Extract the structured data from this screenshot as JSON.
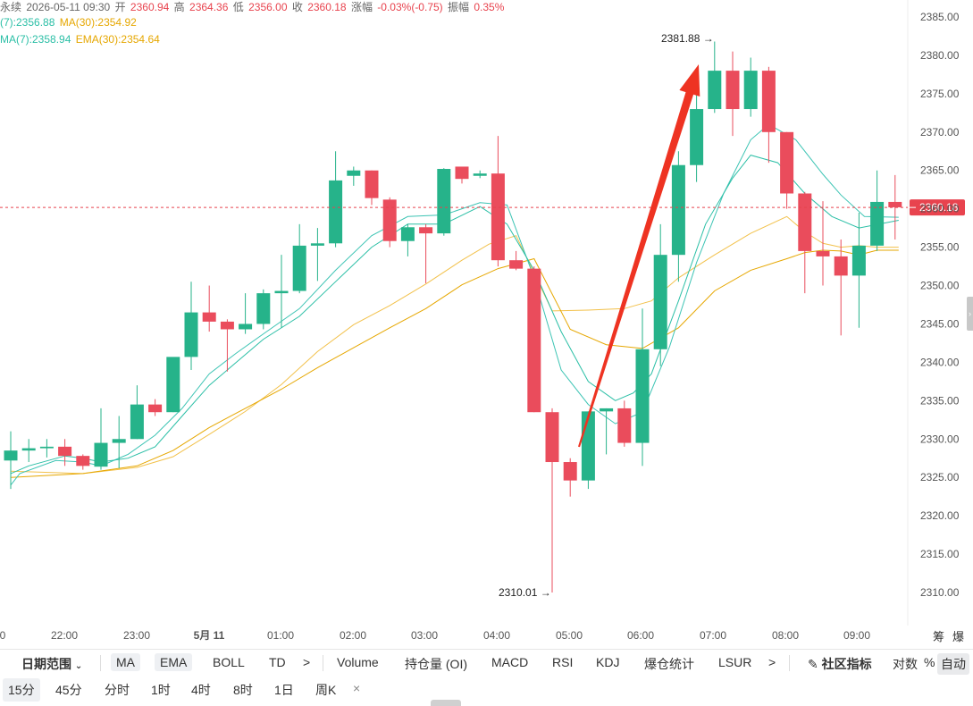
{
  "header": {
    "symbol_fragment": "永续",
    "datetime": "2026-05-11 09:30",
    "open_label": "开",
    "open_value": "2360.94",
    "high_label": "高",
    "high_value": "2364.36",
    "low_label": "低",
    "low_value": "2356.00",
    "close_label": "收",
    "close_value": "2360.18",
    "change_label": "涨幅",
    "change_value": "-0.03%(-0.75)",
    "amplitude_label": "振幅",
    "amplitude_value": "0.35%"
  },
  "legend": {
    "ma7": "(7):2356.88",
    "ma30": "MA(30):2354.92",
    "ema7": "MA(7):2358.94",
    "ema30": "EMA(30):2354.64"
  },
  "colors": {
    "up": "#26b38a",
    "down": "#ea4c5c",
    "ma7": "#3dc4b4",
    "ema7": "#2bbfa6",
    "ma30": "#f2c14b",
    "ema30": "#e6a700",
    "arrow": "#ee3322",
    "last_price": "#e8434e"
  },
  "chart_data": {
    "type": "candlestick",
    "y_range": [
      2306,
      2388
    ],
    "y_ticks": [
      "2385.00",
      "2380.00",
      "2375.00",
      "2370.00",
      "2365.00",
      "2360.00",
      "2355.00",
      "2350.00",
      "2345.00",
      "2340.00",
      "2335.00",
      "2330.00",
      "2325.00",
      "2320.00",
      "2315.00",
      "2310.00"
    ],
    "x_tick_labels": [
      "0",
      "22:00",
      "23:00",
      "5月 11",
      "01:00",
      "02:00",
      "03:00",
      "04:00",
      "05:00",
      "06:00",
      "07:00",
      "08:00",
      "09:00"
    ],
    "x_tick_bold": [
      false,
      false,
      false,
      true,
      false,
      false,
      false,
      false,
      false,
      false,
      false,
      false,
      false
    ],
    "candles": [
      {
        "o": 2327.2,
        "h": 2331.0,
        "l": 2323.5,
        "c": 2328.5
      },
      {
        "o": 2328.5,
        "h": 2330.0,
        "l": 2327.0,
        "c": 2328.8
      },
      {
        "o": 2328.8,
        "h": 2330.0,
        "l": 2327.6,
        "c": 2329.0
      },
      {
        "o": 2329.0,
        "h": 2330.0,
        "l": 2326.5,
        "c": 2327.8
      },
      {
        "o": 2327.8,
        "h": 2328.0,
        "l": 2326.0,
        "c": 2326.5
      },
      {
        "o": 2326.4,
        "h": 2334.0,
        "l": 2326.0,
        "c": 2329.5
      },
      {
        "o": 2329.5,
        "h": 2333.0,
        "l": 2326.2,
        "c": 2330.0
      },
      {
        "o": 2330.0,
        "h": 2337.0,
        "l": 2330.0,
        "c": 2334.5
      },
      {
        "o": 2334.5,
        "h": 2335.2,
        "l": 2333.0,
        "c": 2333.5
      },
      {
        "o": 2333.5,
        "h": 2340.5,
        "l": 2333.5,
        "c": 2340.7
      },
      {
        "o": 2340.7,
        "h": 2350.5,
        "l": 2339.0,
        "c": 2346.5
      },
      {
        "o": 2346.5,
        "h": 2350.0,
        "l": 2344.0,
        "c": 2345.3
      },
      {
        "o": 2345.3,
        "h": 2345.6,
        "l": 2338.8,
        "c": 2344.3
      },
      {
        "o": 2344.3,
        "h": 2349.0,
        "l": 2343.7,
        "c": 2345.0
      },
      {
        "o": 2345.0,
        "h": 2349.5,
        "l": 2344.3,
        "c": 2349.0
      },
      {
        "o": 2349.0,
        "h": 2354.0,
        "l": 2344.5,
        "c": 2349.3
      },
      {
        "o": 2349.3,
        "h": 2358.0,
        "l": 2349.0,
        "c": 2355.2
      },
      {
        "o": 2355.2,
        "h": 2357.5,
        "l": 2350.6,
        "c": 2355.5
      },
      {
        "o": 2355.5,
        "h": 2367.5,
        "l": 2355.0,
        "c": 2363.7
      },
      {
        "o": 2364.3,
        "h": 2365.5,
        "l": 2363.0,
        "c": 2365.0
      },
      {
        "o": 2365.0,
        "h": 2365.0,
        "l": 2360.5,
        "c": 2361.4
      },
      {
        "o": 2361.2,
        "h": 2361.5,
        "l": 2355.0,
        "c": 2355.8
      },
      {
        "o": 2355.8,
        "h": 2358.0,
        "l": 2353.8,
        "c": 2357.6
      },
      {
        "o": 2357.6,
        "h": 2358.0,
        "l": 2350.3,
        "c": 2356.8
      },
      {
        "o": 2356.8,
        "h": 2365.3,
        "l": 2356.5,
        "c": 2365.2
      },
      {
        "o": 2365.5,
        "h": 2365.5,
        "l": 2363.3,
        "c": 2363.9
      },
      {
        "o": 2364.3,
        "h": 2365.0,
        "l": 2364.0,
        "c": 2364.6
      },
      {
        "o": 2364.6,
        "h": 2369.5,
        "l": 2352.5,
        "c": 2353.3
      },
      {
        "o": 2353.3,
        "h": 2354.5,
        "l": 2352.0,
        "c": 2352.2
      },
      {
        "o": 2352.2,
        "h": 2352.5,
        "l": 2333.5,
        "c": 2333.5
      },
      {
        "o": 2333.5,
        "h": 2334.0,
        "l": 2310.0,
        "c": 2327.0
      },
      {
        "o": 2327.0,
        "h": 2327.5,
        "l": 2322.5,
        "c": 2324.6
      },
      {
        "o": 2324.6,
        "h": 2333.6,
        "l": 2323.5,
        "c": 2333.6
      },
      {
        "o": 2333.6,
        "h": 2334.0,
        "l": 2328.0,
        "c": 2334.0
      },
      {
        "o": 2334.0,
        "h": 2335.0,
        "l": 2329.0,
        "c": 2329.5
      },
      {
        "o": 2329.5,
        "h": 2347.0,
        "l": 2326.5,
        "c": 2341.7
      },
      {
        "o": 2341.7,
        "h": 2358.0,
        "l": 2339.5,
        "c": 2354.0
      },
      {
        "o": 2354.0,
        "h": 2367.5,
        "l": 2350.5,
        "c": 2365.7
      },
      {
        "o": 2365.7,
        "h": 2375.5,
        "l": 2363.5,
        "c": 2373.0
      },
      {
        "o": 2373.0,
        "h": 2381.8,
        "l": 2372.5,
        "c": 2378.0
      },
      {
        "o": 2378.0,
        "h": 2380.5,
        "l": 2369.5,
        "c": 2373.0
      },
      {
        "o": 2373.0,
        "h": 2379.7,
        "l": 2372.0,
        "c": 2378.0
      },
      {
        "o": 2378.0,
        "h": 2378.5,
        "l": 2366.0,
        "c": 2370.0
      },
      {
        "o": 2370.0,
        "h": 2370.0,
        "l": 2360.0,
        "c": 2362.0
      },
      {
        "o": 2362.0,
        "h": 2362.2,
        "l": 2349.0,
        "c": 2354.5
      },
      {
        "o": 2354.5,
        "h": 2361.0,
        "l": 2350.0,
        "c": 2353.8
      },
      {
        "o": 2353.8,
        "h": 2356.0,
        "l": 2343.5,
        "c": 2351.3
      },
      {
        "o": 2351.3,
        "h": 2359.5,
        "l": 2344.5,
        "c": 2355.2
      },
      {
        "o": 2355.2,
        "h": 2365.0,
        "l": 2354.5,
        "c": 2360.9
      },
      {
        "o": 2360.9,
        "h": 2364.4,
        "l": 2356.0,
        "c": 2360.2
      }
    ],
    "ma7_x": [
      0,
      0.5,
      2.5,
      4,
      5,
      6.5,
      8,
      9.5,
      11,
      12.5,
      14,
      16,
      18,
      20,
      22,
      24,
      26,
      27.5,
      29,
      30.5,
      32,
      33.5,
      35,
      36.5,
      38,
      39.5,
      41,
      42,
      43.5,
      45,
      46,
      47.3,
      49.2
    ],
    "ma7_y": [
      2324.0,
      2325.5,
      2327.2,
      2327.0,
      2326.5,
      2328.0,
      2330.5,
      2334.0,
      2338.5,
      2341.2,
      2343.7,
      2347.0,
      2352.0,
      2356.5,
      2359.0,
      2359.2,
      2360.8,
      2360.5,
      2351.0,
      2339.0,
      2334.5,
      2332.0,
      2333.5,
      2342.0,
      2353.0,
      2362.0,
      2369.0,
      2371.0,
      2369.0,
      2364.5,
      2361.8,
      2359.0,
      2358.9
    ],
    "ema7_x": [
      0,
      1,
      3,
      4,
      5,
      6.5,
      8,
      9.5,
      11,
      12.5,
      14,
      16,
      18,
      20,
      22,
      24,
      26,
      27.5,
      29,
      30.5,
      32,
      33.5,
      34.5,
      35.5,
      37,
      38.5,
      40,
      41,
      42.5,
      44,
      45.5,
      47,
      49.2
    ],
    "ema7_y": [
      2325.5,
      2326.5,
      2327.8,
      2327.5,
      2327.0,
      2327.5,
      2329.0,
      2333.0,
      2337.0,
      2340.0,
      2343.0,
      2346.0,
      2350.5,
      2355.0,
      2358.0,
      2358.0,
      2360.3,
      2358.0,
      2352.0,
      2344.0,
      2337.5,
      2335.0,
      2336.0,
      2338.5,
      2348.0,
      2358.0,
      2364.0,
      2367.0,
      2366.0,
      2362.0,
      2359.0,
      2357.5,
      2358.5
    ],
    "ma30_x": [
      0,
      4,
      7,
      9,
      11,
      13,
      15,
      17,
      19,
      21,
      23,
      25,
      26.5,
      28,
      30,
      32,
      34,
      35.5,
      37,
      39,
      41,
      43,
      44,
      45,
      46,
      47,
      48,
      49.2
    ],
    "ma30_y": [
      2325.8,
      2325.5,
      2326.3,
      2327.7,
      2330.6,
      2333.6,
      2337.1,
      2341.4,
      2344.9,
      2347.4,
      2350.2,
      2353.3,
      2355.4,
      2356.5,
      2346.7,
      2346.8,
      2347.0,
      2348.0,
      2351.0,
      2354.0,
      2356.8,
      2359.0,
      2357.0,
      2355.5,
      2355.0,
      2355.2,
      2355.0,
      2355.0
    ],
    "ema30_x": [
      0,
      4,
      7,
      9,
      11,
      13,
      15,
      17,
      19,
      21,
      23,
      25,
      27,
      29,
      31,
      33,
      35,
      37,
      39,
      41,
      43,
      44,
      45,
      46,
      47,
      48,
      49.2
    ],
    "ema30_y": [
      2325.0,
      2325.5,
      2326.5,
      2328.5,
      2331.5,
      2334.0,
      2336.5,
      2339.3,
      2341.9,
      2344.5,
      2347.0,
      2350.1,
      2352.2,
      2353.5,
      2344.3,
      2342.3,
      2341.8,
      2344.5,
      2349.3,
      2352.0,
      2353.5,
      2354.3,
      2354.6,
      2354.5,
      2354.0,
      2354.6,
      2354.6
    ],
    "max_marker": {
      "label": "2381.88 →",
      "value": 2381.88
    },
    "min_marker": {
      "label": "2310.01 →",
      "value": 2310.01
    },
    "last_price": {
      "label": "2360.18",
      "value": 2360.18
    }
  },
  "toolbar": {
    "date_range": "日期范围",
    "ma": "MA",
    "ema": "EMA",
    "boll": "BOLL",
    "td": "TD",
    "more1": ">",
    "volume": "Volume",
    "oi": "持仓量 (OI)",
    "macd": "MACD",
    "rsi": "RSI",
    "kdj": "KDJ",
    "liq": "爆仓统计",
    "lsur": "LSUR",
    "more2": ">",
    "community": "社区指标",
    "log": "对数",
    "pct": "%",
    "auto": "自动",
    "top_right_1": "筹",
    "top_right_2": "爆"
  },
  "intervals": [
    "15分",
    "45分",
    "分时",
    "1时",
    "4时",
    "8时",
    "1日",
    "周K"
  ],
  "intervals_close": "×"
}
